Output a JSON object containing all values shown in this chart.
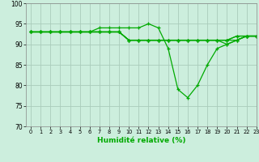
{
  "title": "",
  "xlabel": "Humidité relative (%)",
  "ylabel": "",
  "background_color": "#cceedd",
  "grid_color": "#aaccbb",
  "line_color": "#00aa00",
  "ylim": [
    70,
    100
  ],
  "xlim": [
    -0.5,
    23
  ],
  "yticks": [
    70,
    75,
    80,
    85,
    90,
    95,
    100
  ],
  "xticks": [
    0,
    1,
    2,
    3,
    4,
    5,
    6,
    7,
    8,
    9,
    10,
    11,
    12,
    13,
    14,
    15,
    16,
    17,
    18,
    19,
    20,
    21,
    22,
    23
  ],
  "series": [
    [
      93,
      93,
      93,
      93,
      93,
      93,
      93,
      94,
      94,
      94,
      94,
      94,
      95,
      94,
      89,
      79,
      77,
      80,
      85,
      89,
      90,
      91,
      92,
      92
    ],
    [
      93,
      93,
      93,
      93,
      93,
      93,
      93,
      93,
      93,
      93,
      91,
      91,
      91,
      91,
      91,
      91,
      91,
      91,
      91,
      91,
      91,
      91,
      92,
      92
    ],
    [
      93,
      93,
      93,
      93,
      93,
      93,
      93,
      93,
      93,
      93,
      91,
      91,
      91,
      91,
      91,
      91,
      91,
      91,
      91,
      91,
      91,
      92,
      92,
      92
    ],
    [
      93,
      93,
      93,
      93,
      93,
      93,
      93,
      93,
      93,
      93,
      91,
      91,
      91,
      91,
      91,
      91,
      91,
      91,
      91,
      91,
      90,
      91,
      92,
      92
    ],
    [
      93,
      93,
      93,
      93,
      93,
      93,
      93,
      93,
      93,
      93,
      91,
      91,
      91,
      91,
      91,
      91,
      91,
      91,
      91,
      91,
      91,
      92,
      92,
      92
    ]
  ]
}
